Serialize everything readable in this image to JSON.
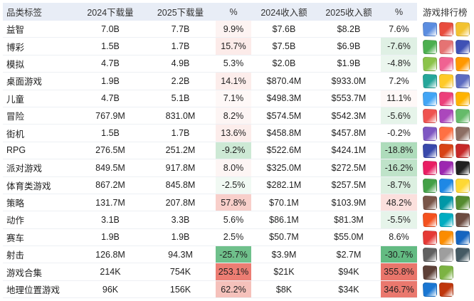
{
  "headers": [
    "品类标签",
    "2024下载量",
    "2025下载量",
    "%",
    "2024收入额",
    "2025收入额",
    "%"
  ],
  "side_header": "游戏排行榜",
  "rows": [
    {
      "label": "益智",
      "dl2024": "7.0B",
      "dl2025": "7.7B",
      "dlpct": "9.9%",
      "rev2024": "$7.6B",
      "rev2025": "$8.2B",
      "revpct": "7.6%",
      "dlcolor": "#fdf3f2",
      "revcolor": "#ffffff"
    },
    {
      "label": "博彩",
      "dl2024": "1.5B",
      "dl2025": "1.7B",
      "dlpct": "15.7%",
      "rev2024": "$7.5B",
      "rev2025": "$6.9B",
      "revpct": "-7.6%",
      "dlcolor": "#fcebe9",
      "revcolor": "#dff0e4"
    },
    {
      "label": "模拟",
      "dl2024": "4.7B",
      "dl2025": "4.9B",
      "dlpct": "5.3%",
      "rev2024": "$2.0B",
      "rev2025": "$1.9B",
      "revpct": "-4.8%",
      "dlcolor": "#ffffff",
      "revcolor": "#ebf6ee"
    },
    {
      "label": "桌面游戏",
      "dl2024": "1.9B",
      "dl2025": "2.2B",
      "dlpct": "14.1%",
      "rev2024": "$870.4M",
      "rev2025": "$933.0M",
      "revpct": "7.2%",
      "dlcolor": "#fcedeb",
      "revcolor": "#ffffff"
    },
    {
      "label": "儿童",
      "dl2024": "4.7B",
      "dl2025": "5.1B",
      "dlpct": "7.1%",
      "rev2024": "$498.3M",
      "rev2025": "$553.7M",
      "revpct": "11.1%",
      "dlcolor": "#fef8f7",
      "revcolor": "#fef8f7"
    },
    {
      "label": "冒险",
      "dl2024": "767.9M",
      "dl2025": "831.0M",
      "dlpct": "8.2%",
      "rev2024": "$574.5M",
      "rev2025": "$542.3M",
      "revpct": "-5.6%",
      "dlcolor": "#fdf5f4",
      "revcolor": "#e6f4ea"
    },
    {
      "label": "街机",
      "dl2024": "1.5B",
      "dl2025": "1.7B",
      "dlpct": "13.6%",
      "rev2024": "$458.8M",
      "rev2025": "$457.8M",
      "revpct": "-0.2%",
      "dlcolor": "#fcedeb",
      "revcolor": "#ffffff"
    },
    {
      "label": "RPG",
      "dl2024": "276.5M",
      "dl2025": "251.2M",
      "dlpct": "-9.2%",
      "rev2024": "$522.6M",
      "rev2025": "$424.1M",
      "revpct": "-18.8%",
      "dlcolor": "#cde9d5",
      "revcolor": "#aedcbb"
    },
    {
      "label": "派对游戏",
      "dl2024": "849.5M",
      "dl2025": "917.8M",
      "dlpct": "8.0%",
      "rev2024": "$325.0M",
      "rev2025": "$272.5M",
      "revpct": "-16.2%",
      "dlcolor": "#fdf5f4",
      "revcolor": "#bfe3c9"
    },
    {
      "label": "体育类游戏",
      "dl2024": "867.2M",
      "dl2025": "845.8M",
      "dlpct": "-2.5%",
      "rev2024": "$282.1M",
      "rev2025": "$257.5M",
      "revpct": "-8.7%",
      "dlcolor": "#f1f9f3",
      "revcolor": "#dcf0e1"
    },
    {
      "label": "策略",
      "dl2024": "131.7M",
      "dl2025": "207.8M",
      "dlpct": "57.8%",
      "rev2024": "$70.1M",
      "rev2025": "$103.9M",
      "revpct": "48.2%",
      "dlcolor": "#f8cfca",
      "revcolor": "#fbe0dd"
    },
    {
      "label": "动作",
      "dl2024": "3.1B",
      "dl2025": "3.3B",
      "dlpct": "5.6%",
      "rev2024": "$86.1M",
      "rev2025": "$81.3M",
      "revpct": "-5.5%",
      "dlcolor": "#ffffff",
      "revcolor": "#e6f4ea"
    },
    {
      "label": "赛车",
      "dl2024": "1.9B",
      "dl2025": "1.9B",
      "dlpct": "2.5%",
      "rev2024": "$50.7M",
      "rev2025": "$55.0M",
      "revpct": "8.6%",
      "dlcolor": "#ffffff",
      "revcolor": "#ffffff"
    },
    {
      "label": "射击",
      "dl2024": "126.8M",
      "dl2025": "94.3M",
      "dlpct": "-25.7%",
      "rev2024": "$3.9M",
      "rev2025": "$2.7M",
      "revpct": "-30.7%",
      "dlcolor": "#6fc08b",
      "revcolor": "#63bb82"
    },
    {
      "label": "游戏合集",
      "dl2024": "214K",
      "dl2025": "754K",
      "dlpct": "253.1%",
      "rev2024": "$21K",
      "rev2025": "$94K",
      "revpct": "355.8%",
      "dlcolor": "#ec7d73",
      "revcolor": "#e9756b"
    },
    {
      "label": "地理位置游戏",
      "dl2024": "96K",
      "dl2025": "156K",
      "dlpct": "62.2%",
      "rev2024": "$8K",
      "rev2025": "$34K",
      "revpct": "346.7%",
      "dlcolor": "#f5c1bb",
      "revcolor": "#ea786e"
    }
  ],
  "icon_rows": [
    {
      "icons": [
        "game-icon",
        "game-icon",
        "game-icon"
      ],
      "colors": [
        "#5b8de0",
        "#e84c3d",
        "#f2c230"
      ]
    },
    {
      "icons": [
        "game-icon",
        "game-icon",
        "game-icon"
      ],
      "colors": [
        "#4caf50",
        "#e57373",
        "#3f51b5"
      ]
    },
    {
      "icons": [
        "game-icon",
        "game-icon",
        "game-icon"
      ],
      "colors": [
        "#8bc34a",
        "#f06292",
        "#ff9800"
      ]
    },
    {
      "icons": [
        "game-icon",
        "game-icon",
        "game-icon"
      ],
      "colors": [
        "#26a69a",
        "#ffca28",
        "#5c6bc0"
      ]
    },
    {
      "icons": [
        "game-icon",
        "game-icon",
        "game-icon"
      ],
      "colors": [
        "#42a5f5",
        "#ec407a",
        "#ffb300"
      ]
    },
    {
      "icons": [
        "game-icon",
        "game-icon",
        "game-icon"
      ],
      "colors": [
        "#ef5350",
        "#ab47bc",
        "#66bb6a"
      ]
    },
    {
      "icons": [
        "game-icon",
        "game-icon",
        "game-icon"
      ],
      "colors": [
        "#7e57c2",
        "#ff7043",
        "#8d6e63"
      ]
    },
    {
      "icons": [
        "game-icon",
        "game-icon",
        "game-icon"
      ],
      "colors": [
        "#3949ab",
        "#d84315",
        "#c62828"
      ]
    },
    {
      "icons": [
        "game-icon",
        "game-icon",
        "game-icon"
      ],
      "colors": [
        "#e91e63",
        "#9c27b0",
        "#212121"
      ]
    },
    {
      "icons": [
        "game-icon",
        "game-icon",
        "game-icon"
      ],
      "colors": [
        "#43a047",
        "#1e88e5",
        "#fdd835"
      ]
    },
    {
      "icons": [
        "game-icon",
        "game-icon",
        "game-icon"
      ],
      "colors": [
        "#795548",
        "#0097a7",
        "#558b2f"
      ]
    },
    {
      "icons": [
        "game-icon",
        "game-icon",
        "game-icon"
      ],
      "colors": [
        "#f4511e",
        "#00acc1",
        "#6d4c41"
      ]
    },
    {
      "icons": [
        "game-icon",
        "game-icon",
        "game-icon"
      ],
      "colors": [
        "#e53935",
        "#fb8c00",
        "#1565c0"
      ]
    },
    {
      "icons": [
        "game-icon",
        "game-icon",
        "game-icon"
      ],
      "colors": [
        "#616161",
        "#9e9e9e",
        "#455a64"
      ]
    },
    {
      "icons": [
        "game-icon",
        "game-icon"
      ],
      "colors": [
        "#5d4037",
        "#7cb342"
      ]
    },
    {
      "icons": [
        "game-icon",
        "game-icon"
      ],
      "colors": [
        "#1976d2",
        "#bf360c"
      ]
    }
  ]
}
